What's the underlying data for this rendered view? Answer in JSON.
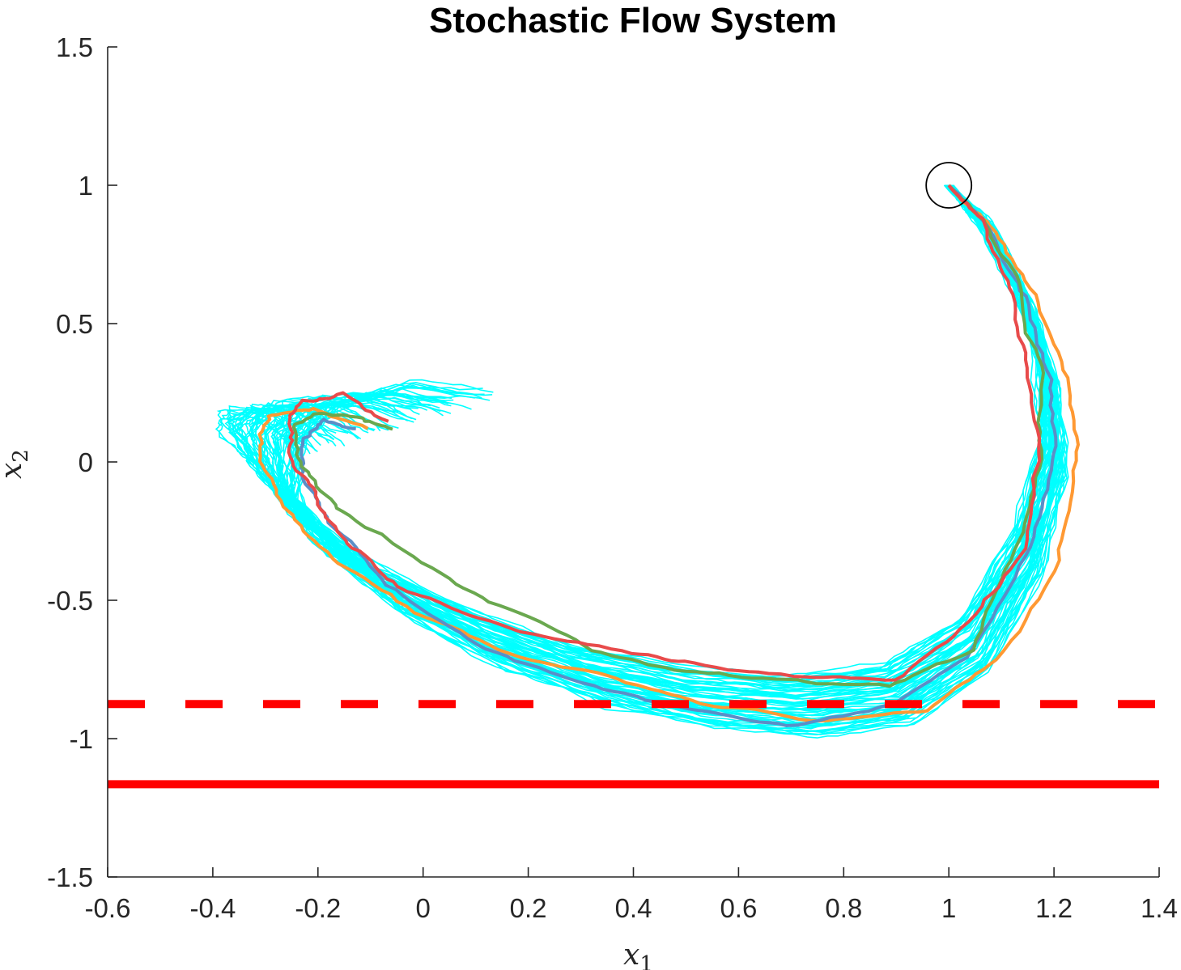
{
  "chart_data": {
    "type": "line",
    "title": "Stochastic Flow System",
    "xlabel": "x",
    "xlabel_sub": "1",
    "ylabel": "x",
    "ylabel_sub": "2",
    "xlim": [
      -0.6,
      1.4
    ],
    "ylim": [
      -1.5,
      1.5
    ],
    "xticks": [
      -0.6,
      -0.4,
      -0.2,
      0,
      0.2,
      0.4,
      0.6,
      0.8,
      1,
      1.2,
      1.4
    ],
    "xtick_labels": [
      "-0.6",
      "-0.4",
      "-0.2",
      "0",
      "0.2",
      "0.4",
      "0.6",
      "0.8",
      "1",
      "1.2",
      "1.4"
    ],
    "yticks": [
      1.5,
      1,
      0.5,
      0,
      -0.5,
      -1,
      -1.5
    ],
    "ytick_labels": [
      "1.5",
      "1",
      "0.5",
      "0",
      "-0.5",
      "-1",
      "-1.5"
    ],
    "grid": false,
    "legend": "none",
    "start_marker": {
      "x": 1.0,
      "y": 1.0,
      "shape": "circle"
    },
    "bundle": {
      "color": "#00ffff",
      "count": 60,
      "x_range": [
        -0.47,
        1.24
      ],
      "y_range": [
        -1.1,
        1.0
      ]
    },
    "series": [
      {
        "color": "#ff9933",
        "x": [
          1.0,
          1.08,
          1.16,
          1.22,
          1.24,
          1.21,
          1.1,
          0.95,
          0.75,
          0.55,
          0.35,
          0.15,
          -0.05,
          -0.2,
          -0.28,
          -0.32,
          -0.3,
          -0.22,
          -0.1
        ],
        "y": [
          1.0,
          0.85,
          0.6,
          0.3,
          0.0,
          -0.35,
          -0.72,
          -0.9,
          -0.93,
          -0.88,
          -0.78,
          -0.68,
          -0.5,
          -0.3,
          -0.12,
          0.05,
          0.17,
          0.2,
          0.12
        ]
      },
      {
        "color": "#5b8ec7",
        "x": [
          1.0,
          1.08,
          1.15,
          1.2,
          1.2,
          1.15,
          1.05,
          0.9,
          0.7,
          0.5,
          0.3,
          0.1,
          -0.07,
          -0.18,
          -0.23,
          -0.23,
          -0.18,
          -0.12
        ],
        "y": [
          1.0,
          0.85,
          0.6,
          0.3,
          0.0,
          -0.35,
          -0.72,
          -0.88,
          -0.95,
          -0.9,
          -0.8,
          -0.66,
          -0.45,
          -0.22,
          -0.05,
          0.08,
          0.15,
          0.12
        ]
      },
      {
        "color": "#6aa84f",
        "x": [
          1.0,
          1.07,
          1.14,
          1.18,
          1.18,
          1.13,
          1.05,
          0.88,
          0.7,
          0.5,
          0.32,
          0.15,
          -0.02,
          -0.15,
          -0.22,
          -0.24,
          -0.2,
          -0.12,
          -0.06
        ],
        "y": [
          1.0,
          0.86,
          0.62,
          0.32,
          0.02,
          -0.32,
          -0.68,
          -0.8,
          -0.78,
          -0.75,
          -0.68,
          -0.52,
          -0.35,
          -0.18,
          -0.02,
          0.12,
          0.18,
          0.15,
          0.12
        ]
      },
      {
        "color": "#e84b4b",
        "x": [
          1.0,
          1.06,
          1.12,
          1.16,
          1.17,
          1.14,
          1.05,
          0.9,
          0.72,
          0.52,
          0.35,
          0.15,
          -0.05,
          -0.15,
          -0.2,
          -0.24,
          -0.25,
          -0.22,
          -0.15,
          -0.07
        ],
        "y": [
          1.0,
          0.86,
          0.6,
          0.3,
          0.0,
          -0.32,
          -0.55,
          -0.78,
          -0.77,
          -0.73,
          -0.68,
          -0.6,
          -0.45,
          -0.3,
          -0.15,
          0.0,
          0.15,
          0.22,
          0.25,
          0.15
        ]
      }
    ],
    "reference_lines": [
      {
        "y": -0.875,
        "style": "dashed",
        "color": "#ff0000",
        "x": [
          -0.6,
          1.4
        ]
      },
      {
        "y": -1.165,
        "style": "solid",
        "color": "#ff0000",
        "x": [
          -0.6,
          1.4
        ]
      }
    ]
  }
}
